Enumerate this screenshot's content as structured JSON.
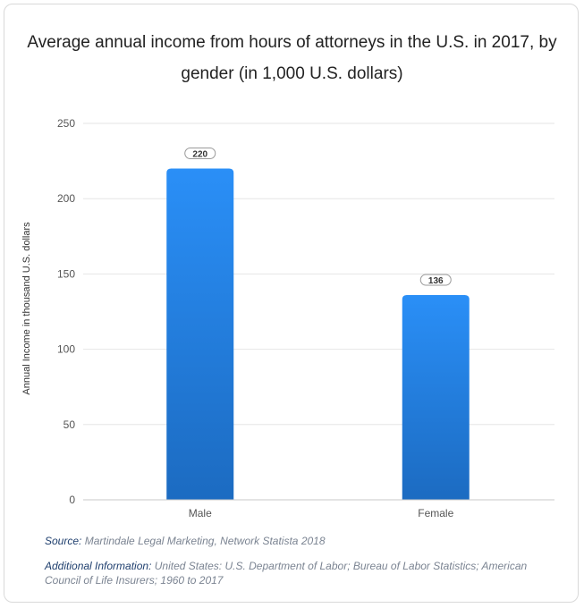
{
  "title": "Average annual income from hours of attorneys in the U.S. in 2017, by gender (in 1,000 U.S. dollars)",
  "source_label": "Source:",
  "source_text": "Martindale Legal Marketing, Network Statista 2018",
  "additional_label": "Additional Information:",
  "additional_text": "United States: U.S. Department of Labor; Bureau of Labor Statistics; American Council of  Life Insurers; 1960 to 2017",
  "chart_data": {
    "type": "bar",
    "title": "Average annual income from hours of attorneys in the U.S. in 2017, by gender (in 1,000 U.S. dollars)",
    "xlabel": "",
    "ylabel": "Annual Income in thousand U.S. dollars",
    "categories": [
      "Male",
      "Female"
    ],
    "values": [
      220,
      136
    ],
    "ylim": [
      0,
      250
    ],
    "yticks": [
      0,
      50,
      100,
      150,
      200,
      250
    ],
    "grid": true,
    "legend": "none",
    "data_labels": true,
    "colors": {
      "bar_top": "#2a8ff7",
      "bar_bottom": "#1c6bc1",
      "grid": "#e6e6e6",
      "axis": "#c8c8c8",
      "tick_text": "#555555"
    }
  }
}
